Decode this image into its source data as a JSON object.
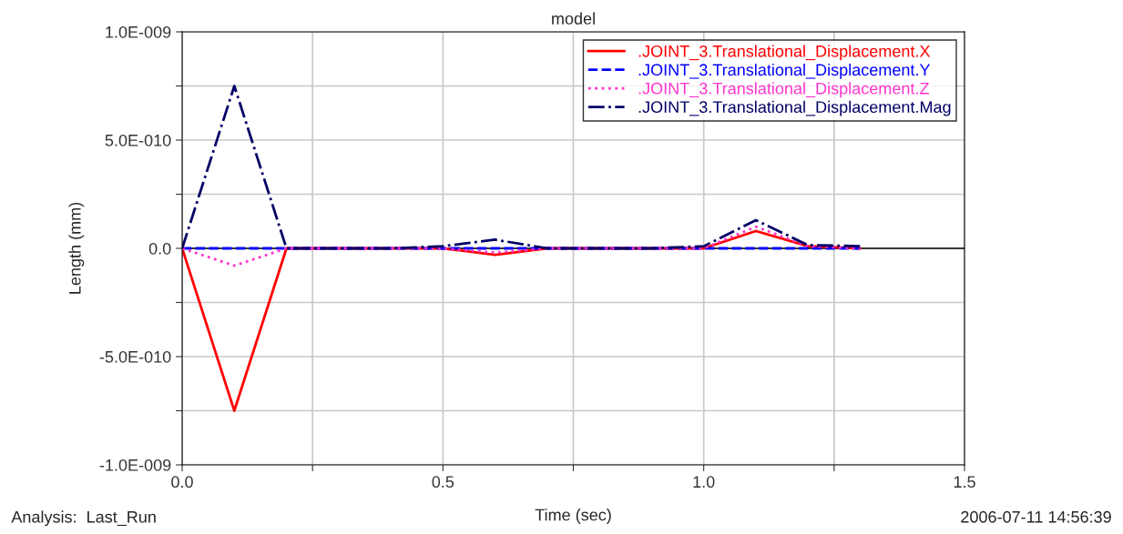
{
  "chart_data": {
    "type": "line",
    "title": "model",
    "xlabel": "Time (sec)",
    "ylabel": "Length (mm)",
    "x": [
      0,
      0.1,
      0.2,
      0.3,
      0.4,
      0.5,
      0.6,
      0.7,
      0.8,
      0.9,
      1.0,
      1.1,
      1.2,
      1.3
    ],
    "series": [
      {
        "name": ".JOINT_3.Translational_Displacement.X",
        "color": "#ff0000",
        "line_style": "solid",
        "values": [
          0,
          -7.5e-10,
          0,
          0,
          0,
          0,
          -3e-11,
          0,
          0,
          0,
          0,
          8e-11,
          1e-11,
          0
        ]
      },
      {
        "name": ".JOINT_3.Translational_Displacement.Y",
        "color": "#0000ff",
        "line_style": "dashed",
        "values": [
          0,
          0,
          0,
          0,
          0,
          0,
          0,
          0,
          0,
          0,
          0,
          0,
          0,
          0
        ]
      },
      {
        "name": ".JOINT_3.Translational_Displacement.Z",
        "color": "#ff33cc",
        "line_style": "dotted",
        "values": [
          0,
          -8e-11,
          0,
          0,
          0,
          0,
          -2e-11,
          0,
          0,
          0,
          0,
          1e-10,
          1e-11,
          0
        ]
      },
      {
        "name": ".JOINT_3.Translational_Displacement.Mag",
        "color": "#000066",
        "line_style": "dashdot",
        "values": [
          0,
          7.5e-10,
          0,
          0,
          0,
          1e-11,
          4e-11,
          0,
          0,
          0,
          1e-11,
          1.3e-10,
          1.5e-11,
          1e-11
        ]
      }
    ],
    "xlim": [
      0,
      1.5
    ],
    "ylim": [
      -1e-09,
      1e-09
    ],
    "xticks": [
      {
        "value": 0,
        "label": "0.0"
      },
      {
        "value": 0.25,
        "label": null
      },
      {
        "value": 0.5,
        "label": "0.5"
      },
      {
        "value": 0.75,
        "label": null
      },
      {
        "value": 1.0,
        "label": "1.0"
      },
      {
        "value": 1.25,
        "label": null
      },
      {
        "value": 1.5,
        "label": "1.5"
      }
    ],
    "yticks": [
      {
        "value": -1e-09,
        "label": "-1.0E-009"
      },
      {
        "value": -7.5e-10,
        "label": null
      },
      {
        "value": -5e-10,
        "label": "-5.0E-010"
      },
      {
        "value": -2.5e-10,
        "label": null
      },
      {
        "value": 0,
        "label": "0.0"
      },
      {
        "value": 2.5e-10,
        "label": null
      },
      {
        "value": 5e-10,
        "label": "5.0E-010"
      },
      {
        "value": 7.5e-10,
        "label": null
      },
      {
        "value": 1e-09,
        "label": "1.0E-009"
      }
    ],
    "ref_lines": [
      {
        "axis": "y",
        "value": 0,
        "color": "#000000"
      }
    ],
    "annotations": [
      "Analysis:  Last_Run",
      "2006-07-11 14:56:39"
    ],
    "grid": true,
    "legend": "top right",
    "marker": "none"
  }
}
